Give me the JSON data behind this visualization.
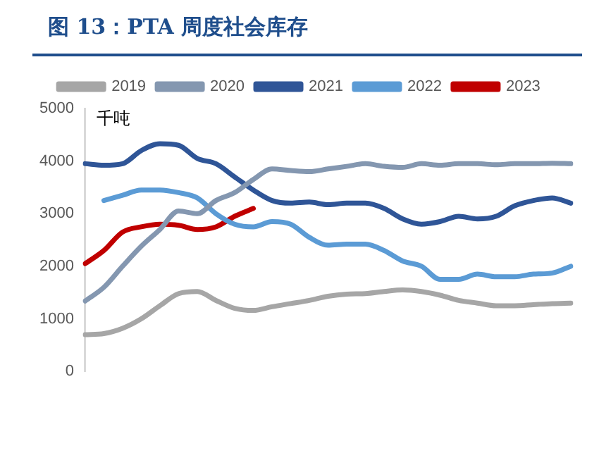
{
  "chart_data": {
    "type": "line",
    "title": "图 13：PTA 周度社会库存",
    "ylabel": "千吨",
    "legend": "top",
    "grid": false,
    "marker": "none",
    "line_style": "solid",
    "categories": [
      null,
      null,
      null,
      null,
      null,
      null,
      null,
      null,
      null,
      null,
      null,
      null,
      null,
      null,
      null,
      null,
      null,
      null,
      null,
      null,
      null,
      null,
      null,
      null,
      null,
      null,
      null
    ],
    "ylim": [
      0,
      5000
    ],
    "yticks": [
      0,
      1000,
      2000,
      3000,
      4000,
      5000
    ],
    "series": [
      {
        "name": "2019",
        "color": "#a6a6a6",
        "values": [
          700,
          720,
          820,
          1000,
          1250,
          1480,
          1520,
          1350,
          1200,
          1160,
          1230,
          1290,
          1350,
          1430,
          1470,
          1480,
          1520,
          1550,
          1520,
          1450,
          1350,
          1300,
          1250,
          1250,
          1270,
          1290,
          1300
        ]
      },
      {
        "name": "2020",
        "color": "#8497b0",
        "values": [
          1340,
          1600,
          2000,
          2380,
          2700,
          3050,
          3000,
          3250,
          3400,
          3650,
          3850,
          3820,
          3800,
          3850,
          3900,
          3950,
          3900,
          3880,
          3950,
          3920,
          3950,
          3950,
          3930,
          3950,
          3950,
          3960,
          3950
        ]
      },
      {
        "name": "2021",
        "color": "#2f5597",
        "values": [
          3950,
          3920,
          3950,
          4200,
          4330,
          4300,
          4050,
          3950,
          3700,
          3450,
          3250,
          3200,
          3220,
          3170,
          3200,
          3200,
          3100,
          2900,
          2800,
          2850,
          2950,
          2900,
          2950,
          3150,
          3250,
          3300,
          3200
        ]
      },
      {
        "name": "2022",
        "color": "#5b9bd5",
        "values": [
          null,
          3250,
          3350,
          3450,
          3450,
          3400,
          3300,
          3000,
          2800,
          2750,
          2850,
          2800,
          2550,
          2400,
          2420,
          2420,
          2300,
          2100,
          2000,
          1750,
          1750,
          1850,
          1800,
          1800,
          1850,
          1870,
          2000
        ]
      },
      {
        "name": "2023",
        "color": "#c00000",
        "values": [
          2050,
          2300,
          2650,
          2750,
          2800,
          2780,
          2700,
          2750,
          2950,
          3100,
          null,
          null,
          null,
          null,
          null,
          null,
          null,
          null,
          null,
          null,
          null,
          null,
          null,
          null,
          null,
          null,
          null
        ]
      }
    ]
  }
}
